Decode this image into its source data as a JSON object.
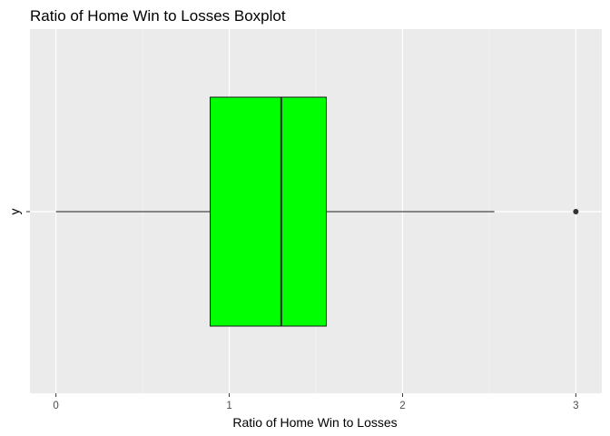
{
  "chart_data": {
    "type": "boxplot",
    "title": "Ratio of Home Win to Losses Boxplot",
    "xlabel": "Ratio of Home Win to Losses",
    "ylabel": "",
    "category_label": "y",
    "xlim": [
      -0.15,
      3.15
    ],
    "x_ticks": [
      0,
      1,
      2,
      3
    ],
    "x_tick_labels": [
      "0",
      "1",
      "2",
      "3"
    ],
    "grid": true,
    "legend": "none",
    "box": {
      "whisker_low": 0.0,
      "q1": 0.89,
      "median": 1.3,
      "q3": 1.56,
      "whisker_high": 2.53,
      "outliers": [
        3.0
      ]
    },
    "colors": {
      "panel_background": "#ebebeb",
      "grid_major": "#ffffff",
      "grid_minor": "#f4f4f4",
      "box_fill": "#00ff00",
      "box_line": "#1a1a1a",
      "outlier": "#333333"
    }
  }
}
